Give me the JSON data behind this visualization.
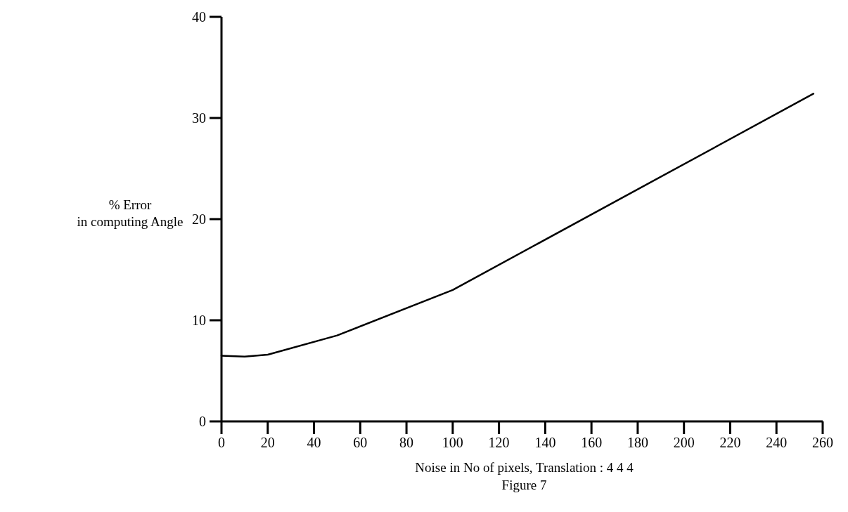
{
  "chart_data": {
    "type": "line",
    "xlabel": "Noise in No of pixels, Translation : 4 4 4",
    "ylabel": "% Error\nin computing Angle",
    "annotations": [
      "Figure 7"
    ],
    "series": [
      {
        "color": "#000000",
        "x": [
          0,
          10,
          20,
          50,
          100,
          256
        ],
        "values": [
          6.5,
          6.4,
          6.6,
          8.5,
          13.0,
          32.4
        ]
      }
    ],
    "xlim": [
      0,
      260
    ],
    "xticks": [
      0,
      20,
      40,
      60,
      80,
      100,
      120,
      140,
      160,
      180,
      200,
      220,
      240,
      260
    ],
    "ylim": [
      0,
      40
    ],
    "yticks": [
      0,
      10,
      20,
      30,
      40
    ],
    "marker": "none",
    "line_style": "solid"
  }
}
